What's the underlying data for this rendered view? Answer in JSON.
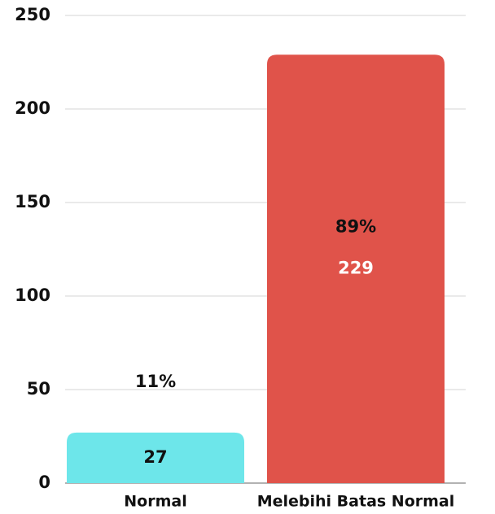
{
  "chart_data": {
    "type": "bar",
    "categories": [
      "Normal",
      "Melebihi Batas Normal"
    ],
    "values": [
      27,
      229
    ],
    "percent_labels": [
      "11%",
      "89%"
    ],
    "colors": [
      "#6de6ea",
      "#e0534a"
    ],
    "ylim": [
      0,
      250
    ],
    "yticks": [
      0,
      50,
      100,
      150,
      200,
      250
    ],
    "grid": true
  }
}
